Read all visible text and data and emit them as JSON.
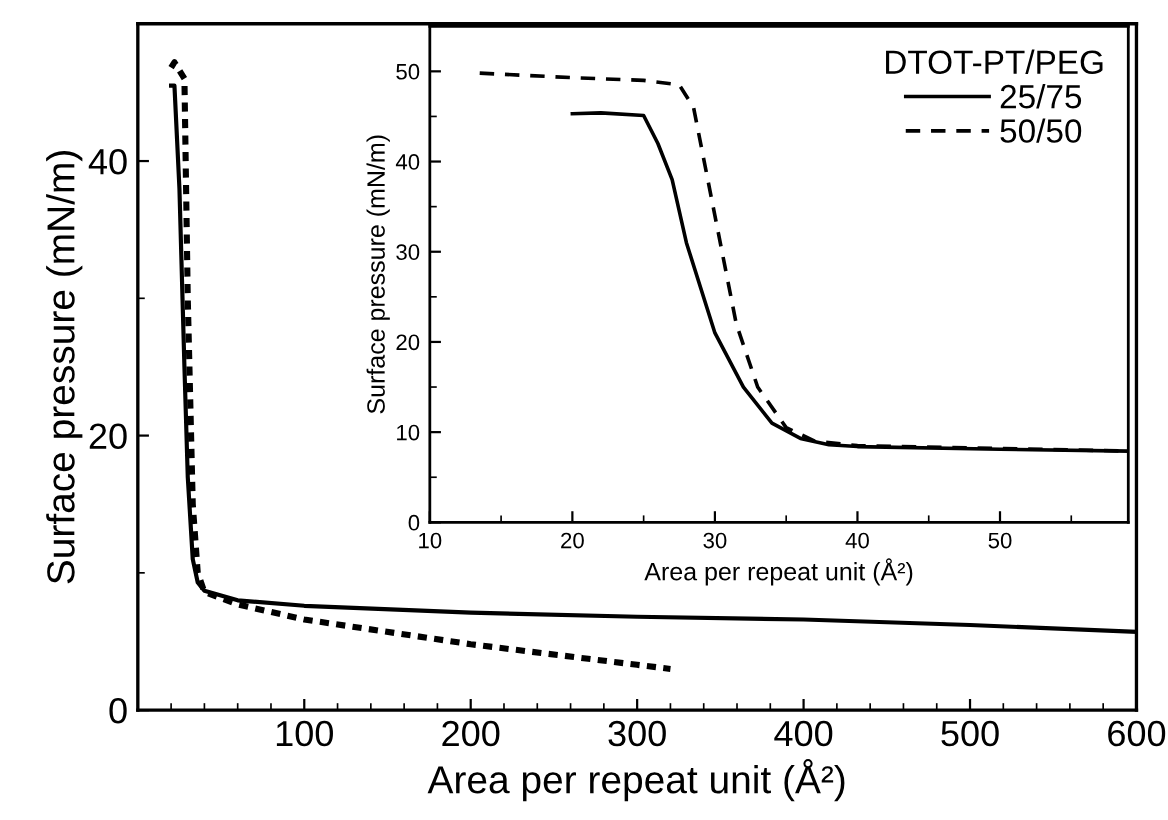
{
  "chart_data": [
    {
      "type": "line",
      "xlabel": "Area per repeat unit (Å²)",
      "ylabel": "Surface pressure (mN/m)",
      "xlim": [
        0,
        600
      ],
      "ylim": [
        0,
        50
      ],
      "xticks": [
        100,
        200,
        300,
        400,
        500,
        600
      ],
      "yticks": [
        0,
        20,
        40
      ],
      "grid": false,
      "legend": false,
      "marker": "none",
      "series": [
        {
          "color": "#000000",
          "line_style": "solid",
          "x": [
            20,
            22,
            25,
            28,
            30,
            33,
            36,
            40,
            60,
            100,
            200,
            300,
            400,
            500,
            600
          ],
          "values": [
            45.5,
            45.5,
            38,
            25,
            17,
            11,
            9.3,
            8.7,
            8,
            7.6,
            7.1,
            6.8,
            6.6,
            6.2,
            5.7
          ]
        },
        {
          "color": "#000000",
          "line_style": "dotted",
          "x": [
            20,
            22,
            28,
            30,
            33,
            36,
            40,
            60,
            100,
            200,
            300,
            320
          ],
          "values": [
            46.8,
            47.2,
            46,
            30,
            15,
            10,
            8.6,
            7.7,
            6.6,
            4.8,
            3.3,
            3.0
          ]
        }
      ]
    },
    {
      "type": "line",
      "xlabel": "Area per repeat unit (Å²)",
      "ylabel": "Surface pressure (mN/m)",
      "xlim": [
        10,
        59
      ],
      "ylim": [
        0,
        55
      ],
      "xticks": [
        10,
        20,
        30,
        40,
        50
      ],
      "yticks": [
        0,
        10,
        20,
        30,
        40,
        50
      ],
      "grid": false,
      "legend": "top right",
      "legend_title": "DTOT-PT/PEG",
      "marker": "none",
      "series": [
        {
          "name": "25/75",
          "color": "#000000",
          "line_style": "solid",
          "x": [
            20,
            22,
            25,
            26,
            27,
            28,
            30,
            32,
            34,
            36,
            38,
            40,
            50,
            59
          ],
          "values": [
            45.3,
            45.4,
            45.1,
            42,
            38,
            31,
            21,
            15,
            11,
            9.3,
            8.6,
            8.4,
            8.1,
            7.9
          ]
        },
        {
          "name": "50/50",
          "color": "#000000",
          "line_style": "dashed",
          "x": [
            13.5,
            20,
            25,
            27.5,
            28.5,
            29.5,
            30.5,
            31.5,
            33,
            35,
            37,
            40,
            50,
            59
          ],
          "values": [
            49.8,
            49.3,
            49.0,
            48.5,
            46,
            38,
            30,
            22,
            15,
            10.5,
            9.0,
            8.5,
            8.2,
            7.9
          ]
        }
      ]
    }
  ]
}
